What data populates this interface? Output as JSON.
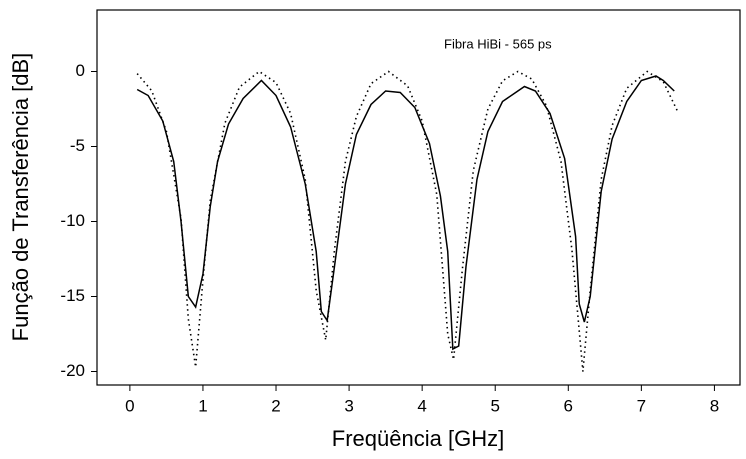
{
  "chart_data": {
    "type": "line",
    "xlabel": "Freqüência [GHz]",
    "ylabel": "Função de Transferência [dB]",
    "annotation": "Fibra HiBi - 565 ps",
    "xlim": [
      -0.45,
      8.35
    ],
    "xticks": [
      0,
      1,
      2,
      3,
      4,
      5,
      6,
      7,
      8
    ],
    "ylim": [
      -20.9,
      4.1
    ],
    "yticks": [
      -20,
      -15,
      -10,
      -5,
      0
    ],
    "grid": false,
    "series": [
      {
        "color": "#000000",
        "style": "solid",
        "x": [
          0.1,
          0.25,
          0.45,
          0.6,
          0.7,
          0.8,
          0.9,
          1.0,
          1.1,
          1.2,
          1.35,
          1.55,
          1.8,
          2.0,
          2.2,
          2.4,
          2.55,
          2.62,
          2.7,
          2.8,
          2.95,
          3.1,
          3.3,
          3.5,
          3.7,
          3.9,
          4.1,
          4.25,
          4.35,
          4.42,
          4.5,
          4.6,
          4.75,
          4.9,
          5.1,
          5.25,
          5.4,
          5.55,
          5.75,
          5.95,
          6.1,
          6.15,
          6.22,
          6.3,
          6.45,
          6.6,
          6.8,
          7.0,
          7.2,
          7.3,
          7.45
        ],
        "values": [
          -1.2,
          -1.6,
          -3.3,
          -6,
          -10,
          -15,
          -15.7,
          -13.5,
          -9,
          -6,
          -3.5,
          -1.8,
          -0.6,
          -1.6,
          -3.7,
          -7.5,
          -12,
          -16,
          -16.6,
          -13,
          -7.5,
          -4.2,
          -2.2,
          -1.3,
          -1.4,
          -2.4,
          -4.8,
          -8.3,
          -12,
          -18.5,
          -18.3,
          -13,
          -7.2,
          -4,
          -2,
          -1.5,
          -1,
          -1.3,
          -2.8,
          -5.8,
          -11,
          -15.5,
          -16.7,
          -15,
          -8,
          -4.5,
          -2,
          -0.6,
          -0.3,
          -0.6,
          -1.3
        ]
      },
      {
        "color": "#000000",
        "style": "dotted",
        "x": [
          0.1,
          0.3,
          0.5,
          0.7,
          0.8,
          0.9,
          1.0,
          1.1,
          1.3,
          1.5,
          1.77,
          2.0,
          2.2,
          2.4,
          2.55,
          2.68,
          2.8,
          2.95,
          3.1,
          3.3,
          3.54,
          3.8,
          4.0,
          4.2,
          4.35,
          4.43,
          4.55,
          4.7,
          4.9,
          5.1,
          5.31,
          5.5,
          5.7,
          5.9,
          6.05,
          6.2,
          6.3,
          6.45,
          6.6,
          6.8,
          7.08,
          7.3,
          7.5
        ],
        "values": [
          -0.14,
          -1.29,
          -3.99,
          -9.8,
          -16.5,
          -19.7,
          -13.9,
          -8.6,
          -3.45,
          -1.04,
          0,
          -0.74,
          -2.8,
          -7.2,
          -14.6,
          -17.9,
          -11.9,
          -6.0,
          -3.0,
          -0.81,
          0,
          -0.95,
          -3.3,
          -8.2,
          -17.5,
          -19.2,
          -13.2,
          -6.6,
          -2.5,
          -0.62,
          0,
          -0.5,
          -2.27,
          -6.0,
          -11.9,
          -20,
          -14.6,
          -7.2,
          -3.6,
          -1.12,
          0,
          -0.68,
          -2.7
        ]
      }
    ]
  }
}
